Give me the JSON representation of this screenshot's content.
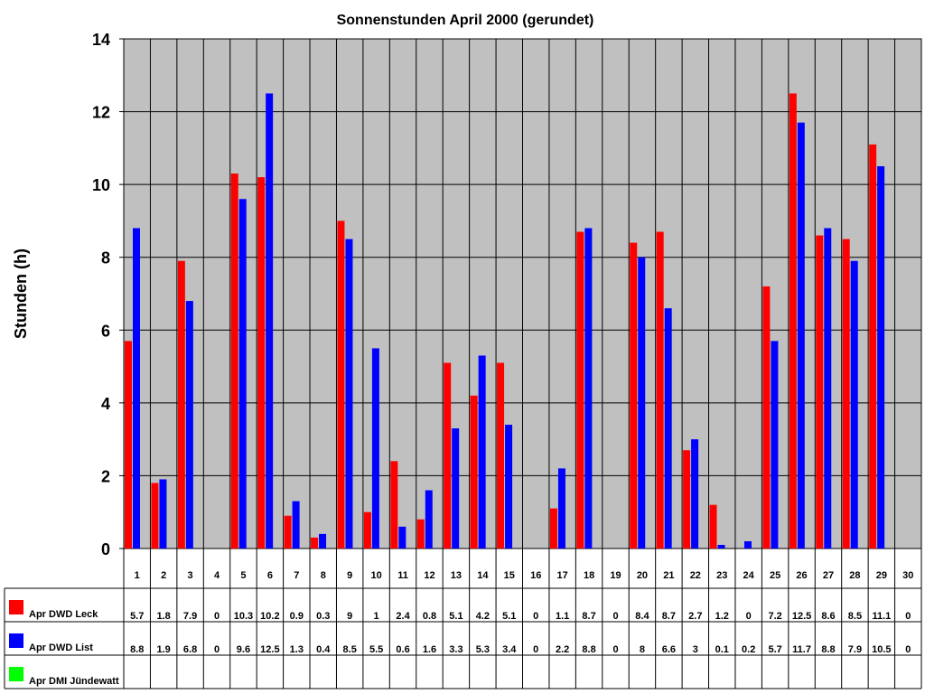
{
  "chart_data": {
    "type": "bar",
    "title": "Sonnenstunden April 2000 (gerundet)",
    "y_label": "Stunden (h)",
    "categories": [
      "1",
      "2",
      "3",
      "4",
      "5",
      "6",
      "7",
      "8",
      "9",
      "10",
      "11",
      "12",
      "13",
      "14",
      "15",
      "16",
      "17",
      "18",
      "19",
      "20",
      "21",
      "22",
      "23",
      "24",
      "25",
      "26",
      "27",
      "28",
      "29",
      "30"
    ],
    "series": [
      {
        "name": "Apr DWD Leck",
        "color": "#ff0000",
        "values": [
          5.7,
          1.8,
          7.9,
          0,
          10.3,
          10.2,
          0.9,
          0.3,
          9,
          1,
          2.4,
          0.8,
          5.1,
          4.2,
          5.1,
          0,
          1.1,
          8.7,
          0,
          8.4,
          8.7,
          2.7,
          1.2,
          0,
          7.2,
          12.5,
          8.6,
          8.5,
          11.1,
          0
        ]
      },
      {
        "name": "Apr DWD List",
        "color": "#0000ff",
        "values": [
          8.8,
          1.9,
          6.8,
          0,
          9.6,
          12.5,
          1.3,
          0.4,
          8.5,
          5.5,
          0.6,
          1.6,
          3.3,
          5.3,
          3.4,
          0,
          2.2,
          8.8,
          0,
          8,
          6.6,
          3,
          0.1,
          0.2,
          5.7,
          11.7,
          8.8,
          7.9,
          10.5,
          0
        ]
      },
      {
        "name": "Apr DMI Jündewatt",
        "color": "#00ff00",
        "values": [
          null,
          null,
          null,
          null,
          null,
          null,
          null,
          null,
          null,
          null,
          null,
          null,
          null,
          null,
          null,
          null,
          null,
          null,
          null,
          null,
          null,
          null,
          null,
          null,
          null,
          null,
          null,
          null,
          null,
          null
        ]
      }
    ],
    "ylim": [
      0,
      14
    ],
    "yticks": [
      0,
      2,
      4,
      6,
      8,
      10,
      12,
      14
    ],
    "grid": true,
    "data_table": true
  }
}
